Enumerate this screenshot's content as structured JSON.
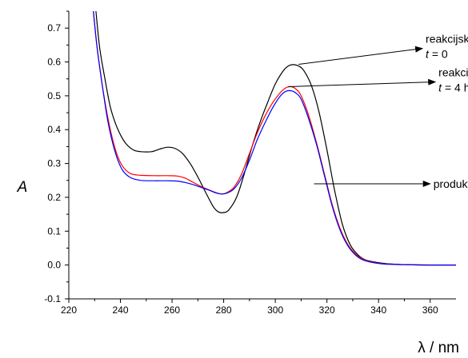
{
  "chart_data": {
    "type": "line",
    "xlabel": "λ / nm",
    "ylabel": "A",
    "xlim": [
      220,
      370
    ],
    "ylim": [
      -0.1,
      0.75
    ],
    "x_ticks": [
      "220",
      "240",
      "260",
      "280",
      "300",
      "320",
      "340",
      "360"
    ],
    "y_ticks": [
      "-0.1",
      "0.0",
      "0.1",
      "0.2",
      "0.3",
      "0.4",
      "0.5",
      "0.6",
      "0.7"
    ],
    "grid": false,
    "legend": "none",
    "series": [
      {
        "color": "#000000",
        "points": [
          [
            230.5,
            0.75
          ],
          [
            232,
            0.64
          ],
          [
            234,
            0.55
          ],
          [
            236,
            0.47
          ],
          [
            238,
            0.42
          ],
          [
            240,
            0.385
          ],
          [
            242,
            0.36
          ],
          [
            245,
            0.34
          ],
          [
            248,
            0.335
          ],
          [
            252,
            0.335
          ],
          [
            255,
            0.342
          ],
          [
            258,
            0.348
          ],
          [
            261,
            0.345
          ],
          [
            264,
            0.33
          ],
          [
            267,
            0.3
          ],
          [
            270,
            0.26
          ],
          [
            273,
            0.215
          ],
          [
            276,
            0.172
          ],
          [
            278,
            0.157
          ],
          [
            280,
            0.155
          ],
          [
            282,
            0.163
          ],
          [
            285,
            0.2
          ],
          [
            288,
            0.27
          ],
          [
            291,
            0.35
          ],
          [
            294,
            0.42
          ],
          [
            297,
            0.48
          ],
          [
            300,
            0.535
          ],
          [
            303,
            0.573
          ],
          [
            305,
            0.588
          ],
          [
            307,
            0.592
          ],
          [
            309,
            0.588
          ],
          [
            311,
            0.575
          ],
          [
            314,
            0.53
          ],
          [
            317,
            0.45
          ],
          [
            320,
            0.34
          ],
          [
            323,
            0.22
          ],
          [
            326,
            0.12
          ],
          [
            329,
            0.06
          ],
          [
            332,
            0.03
          ],
          [
            335,
            0.015
          ],
          [
            340,
            0.007
          ],
          [
            345,
            0.003
          ],
          [
            350,
            0.001
          ],
          [
            360,
            0.0
          ],
          [
            370,
            0.0
          ]
        ]
      },
      {
        "color": "#ff0000",
        "points": [
          [
            229.5,
            0.75
          ],
          [
            231,
            0.64
          ],
          [
            233,
            0.53
          ],
          [
            235,
            0.44
          ],
          [
            237,
            0.37
          ],
          [
            239,
            0.32
          ],
          [
            241,
            0.29
          ],
          [
            244,
            0.27
          ],
          [
            248,
            0.265
          ],
          [
            253,
            0.264
          ],
          [
            258,
            0.264
          ],
          [
            262,
            0.263
          ],
          [
            265,
            0.257
          ],
          [
            268,
            0.245
          ],
          [
            271,
            0.233
          ],
          [
            274,
            0.223
          ],
          [
            277,
            0.214
          ],
          [
            279,
            0.21
          ],
          [
            281,
            0.213
          ],
          [
            284,
            0.23
          ],
          [
            287,
            0.27
          ],
          [
            290,
            0.33
          ],
          [
            293,
            0.39
          ],
          [
            296,
            0.44
          ],
          [
            299,
            0.48
          ],
          [
            302,
            0.51
          ],
          [
            304,
            0.523
          ],
          [
            306,
            0.527
          ],
          [
            308,
            0.52
          ],
          [
            310,
            0.5
          ],
          [
            313,
            0.44
          ],
          [
            316,
            0.36
          ],
          [
            319,
            0.27
          ],
          [
            322,
            0.18
          ],
          [
            325,
            0.11
          ],
          [
            328,
            0.062
          ],
          [
            331,
            0.033
          ],
          [
            334,
            0.017
          ],
          [
            338,
            0.008
          ],
          [
            342,
            0.004
          ],
          [
            350,
            0.001
          ],
          [
            360,
            0.0
          ],
          [
            370,
            0.0
          ]
        ]
      },
      {
        "color": "#0000ff",
        "points": [
          [
            229.5,
            0.75
          ],
          [
            231,
            0.64
          ],
          [
            233,
            0.53
          ],
          [
            235,
            0.43
          ],
          [
            237,
            0.36
          ],
          [
            239,
            0.31
          ],
          [
            241,
            0.278
          ],
          [
            244,
            0.258
          ],
          [
            248,
            0.25
          ],
          [
            253,
            0.249
          ],
          [
            258,
            0.249
          ],
          [
            262,
            0.248
          ],
          [
            265,
            0.244
          ],
          [
            268,
            0.238
          ],
          [
            271,
            0.23
          ],
          [
            274,
            0.222
          ],
          [
            277,
            0.213
          ],
          [
            279,
            0.21
          ],
          [
            281,
            0.212
          ],
          [
            284,
            0.225
          ],
          [
            287,
            0.258
          ],
          [
            290,
            0.31
          ],
          [
            293,
            0.37
          ],
          [
            296,
            0.42
          ],
          [
            299,
            0.465
          ],
          [
            302,
            0.5
          ],
          [
            304,
            0.513
          ],
          [
            306,
            0.515
          ],
          [
            308,
            0.508
          ],
          [
            310,
            0.49
          ],
          [
            313,
            0.43
          ],
          [
            316,
            0.355
          ],
          [
            319,
            0.265
          ],
          [
            322,
            0.175
          ],
          [
            325,
            0.105
          ],
          [
            328,
            0.058
          ],
          [
            331,
            0.03
          ],
          [
            334,
            0.015
          ],
          [
            338,
            0.007
          ],
          [
            342,
            0.003
          ],
          [
            350,
            0.001
          ],
          [
            360,
            0.0
          ],
          [
            370,
            0.0
          ]
        ]
      }
    ],
    "annotations": [
      {
        "name": "t0",
        "line1": "reakcijska smjesa",
        "var": "t",
        "rest": " = 0",
        "target": [
          309,
          0.593
        ],
        "arrow_end": [
          357,
          0.64
        ]
      },
      {
        "name": "t4h",
        "line1": "reakcijska smjesa",
        "var": "t",
        "rest": " = 4 h",
        "target": [
          305,
          0.527
        ],
        "arrow_end": [
          362,
          0.541
        ]
      },
      {
        "name": "produkt",
        "line1": "produkt",
        "target": [
          315,
          0.24
        ],
        "arrow_end": [
          360,
          0.24
        ]
      }
    ]
  }
}
